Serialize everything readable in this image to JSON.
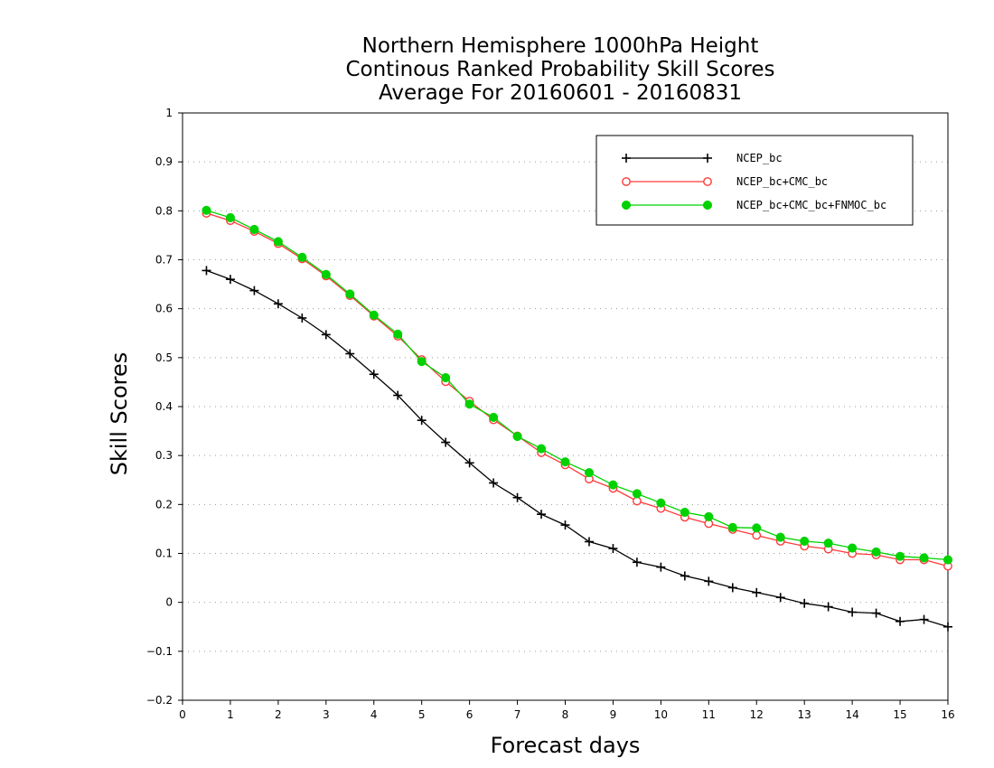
{
  "chart_data": {
    "type": "line",
    "title_lines": [
      "Northern Hemisphere 1000hPa Height",
      "Continous Ranked Probability Skill Scores",
      "Average For 20160601 - 20160831"
    ],
    "xlabel": "Forecast days",
    "ylabel": "Skill Scores",
    "xlim": [
      0,
      16
    ],
    "ylim": [
      -0.2,
      1
    ],
    "x_ticks": [
      0,
      1,
      2,
      3,
      4,
      5,
      6,
      7,
      8,
      9,
      10,
      11,
      12,
      13,
      14,
      15,
      16
    ],
    "x_tick_labels": [
      "0",
      "1",
      "2",
      "3",
      "4",
      "5",
      "6",
      "7",
      "8",
      "9",
      "10",
      "11",
      "12",
      "13",
      "14",
      "15",
      "16"
    ],
    "y_ticks": [
      -0.2,
      -0.1,
      0,
      0.1,
      0.2,
      0.3,
      0.4,
      0.5,
      0.6,
      0.7,
      0.8,
      0.9,
      1
    ],
    "y_tick_labels": [
      "−0.2",
      "−0.1",
      "0",
      "0.1",
      "0.2",
      "0.3",
      "0.4",
      "0.5",
      "0.6",
      "0.7",
      "0.8",
      "0.9",
      "1"
    ],
    "grid": "horizontal-dotted",
    "legend_position": "top-right",
    "x": [
      0.5,
      1,
      1.5,
      2,
      2.5,
      3,
      3.5,
      4,
      4.5,
      5,
      5.5,
      6,
      6.5,
      7,
      7.5,
      8,
      8.5,
      9,
      9.5,
      10,
      10.5,
      11,
      11.5,
      12,
      12.5,
      13,
      13.5,
      14,
      14.5,
      15,
      15.5,
      16
    ],
    "series": [
      {
        "name": "NCEP_bc",
        "color": "#000000",
        "marker": "plus",
        "values": [
          0.678,
          0.66,
          0.637,
          0.61,
          0.581,
          0.547,
          0.508,
          0.466,
          0.423,
          0.372,
          0.327,
          0.285,
          0.244,
          0.214,
          0.18,
          0.158,
          0.124,
          0.11,
          0.082,
          0.072,
          0.054,
          0.043,
          0.03,
          0.02,
          0.01,
          -0.002,
          -0.009,
          -0.02,
          -0.022,
          -0.039,
          -0.035,
          -0.05
        ]
      },
      {
        "name": "NCEP_bc+CMC_bc",
        "color": "#ff3a3a",
        "marker": "open-circle",
        "values": [
          0.795,
          0.78,
          0.758,
          0.733,
          0.702,
          0.667,
          0.627,
          0.585,
          0.544,
          0.496,
          0.451,
          0.411,
          0.373,
          0.34,
          0.306,
          0.281,
          0.252,
          0.233,
          0.207,
          0.192,
          0.174,
          0.161,
          0.149,
          0.137,
          0.125,
          0.115,
          0.109,
          0.1,
          0.097,
          0.087,
          0.087,
          0.074
        ]
      },
      {
        "name": "NCEP_bc+CMC_bc+FNMOC_bc",
        "color": "#00d200",
        "marker": "filled-circle",
        "values": [
          0.801,
          0.786,
          0.762,
          0.737,
          0.705,
          0.67,
          0.63,
          0.587,
          0.548,
          0.492,
          0.459,
          0.405,
          0.378,
          0.339,
          0.314,
          0.287,
          0.265,
          0.24,
          0.222,
          0.203,
          0.184,
          0.175,
          0.153,
          0.152,
          0.133,
          0.125,
          0.121,
          0.111,
          0.103,
          0.094,
          0.091,
          0.087
        ]
      }
    ]
  }
}
